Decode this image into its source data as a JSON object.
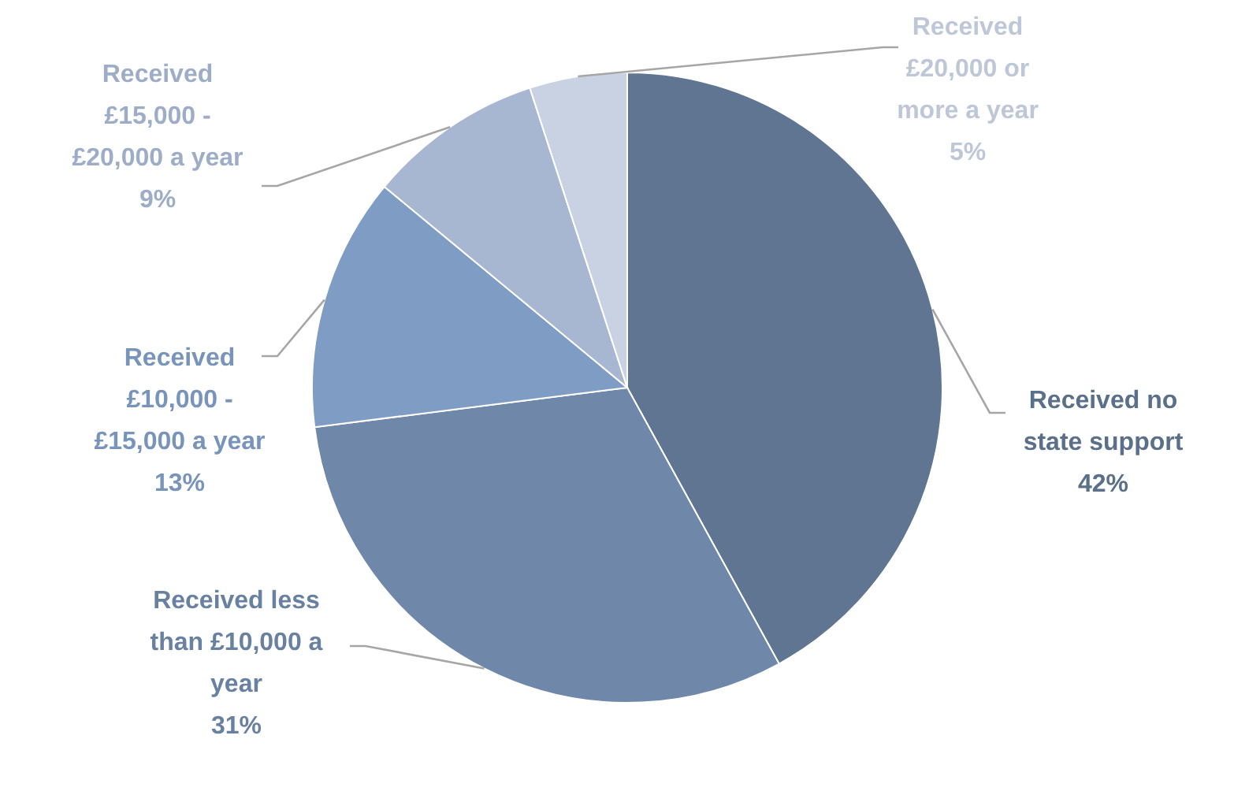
{
  "chart_data": {
    "type": "pie",
    "categories": [
      "Received no state support",
      "Received less than £10,000 a year",
      "Received £10,000 - £15,000 a year",
      "Received £15,000 - £20,000 a year",
      "Received £20,000 or more a year"
    ],
    "values": [
      42,
      31,
      13,
      9,
      5
    ],
    "value_labels": [
      "42%",
      "31%",
      "13%",
      "9%",
      "5%"
    ],
    "colors": [
      "#5f7591",
      "#6f88aa",
      "#7f9cc4",
      "#a7b7d2",
      "#c8d2e3"
    ]
  }
}
